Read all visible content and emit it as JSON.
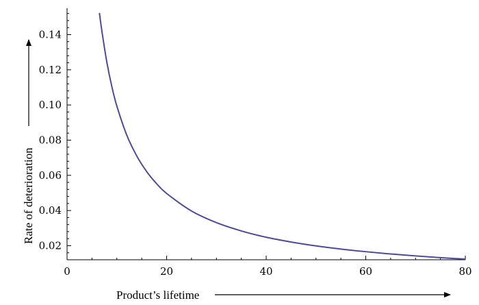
{
  "chart_data": {
    "type": "line",
    "title": "",
    "xlabel": "Product’s lifetime",
    "ylabel": "Rate of deterioration",
    "xlim": [
      0,
      80
    ],
    "ylim": [
      0.012,
      0.155
    ],
    "x_ticks": [
      0,
      20,
      40,
      60,
      80
    ],
    "x_tick_labels": [
      "0",
      "20",
      "40",
      "60",
      "80"
    ],
    "y_ticks": [
      0.02,
      0.04,
      0.06,
      0.08,
      0.1,
      0.12,
      0.14
    ],
    "y_tick_labels": [
      "0.02",
      "0.04",
      "0.06",
      "0.08",
      "0.10",
      "0.12",
      "0.14"
    ],
    "grid": false,
    "legend": "none",
    "colors": {
      "series": "#4b4aa0",
      "axis": "#000000",
      "arrow": "#000000"
    },
    "series": [
      {
        "color": "#4b4aa0",
        "x": [
          6.5,
          7,
          8,
          9,
          10,
          12,
          14,
          16,
          18,
          20,
          25,
          30,
          35,
          40,
          45,
          50,
          55,
          60,
          65,
          70,
          75,
          80
        ],
        "y": [
          0.1523,
          0.1419,
          0.1242,
          0.1104,
          0.0994,
          0.0828,
          0.071,
          0.0621,
          0.0552,
          0.0497,
          0.0397,
          0.0331,
          0.0284,
          0.0248,
          0.0221,
          0.0199,
          0.0181,
          0.0166,
          0.0153,
          0.0142,
          0.0132,
          0.0124
        ]
      }
    ]
  }
}
